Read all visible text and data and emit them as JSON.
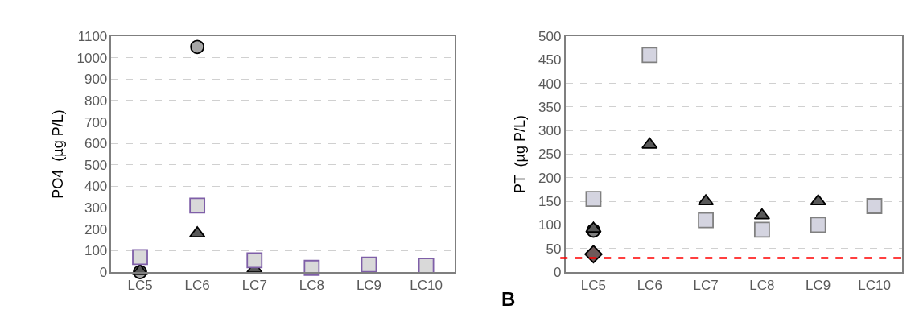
{
  "chart_data": [
    {
      "type": "scatter",
      "ylabel": "PO4  (µg P/L)",
      "categories": [
        "LC5",
        "LC6",
        "LC7",
        "LC8",
        "LC9",
        "LC10"
      ],
      "ylim": [
        0,
        1100
      ],
      "yticks": [
        0,
        100,
        200,
        300,
        400,
        500,
        600,
        700,
        800,
        900,
        1000,
        1100
      ],
      "grid": "y",
      "series": [
        {
          "color": "#a6a6a6",
          "marker": "circle",
          "values": [
            0,
            1050,
            null,
            null,
            null,
            null
          ]
        },
        {
          "color": "#595959",
          "marker": "triangle",
          "values": [
            5,
            180,
            15,
            null,
            null,
            null
          ]
        },
        {
          "color": "#d9d9d9",
          "marker": "square",
          "values": [
            70,
            310,
            55,
            20,
            35,
            30
          ]
        }
      ]
    },
    {
      "type": "scatter",
      "ylabel": "PT  (µg P/L)",
      "annotations": [
        "B"
      ],
      "categories": [
        "LC5",
        "LC6",
        "LC7",
        "LC8",
        "LC9",
        "LC10"
      ],
      "ylim": [
        0,
        500
      ],
      "yticks": [
        0,
        50,
        100,
        150,
        200,
        250,
        300,
        350,
        400,
        450,
        500
      ],
      "grid": "y",
      "ref_lines": [
        {
          "axis": "y",
          "value": 30,
          "color": "#ff0000",
          "line_style": "dashed"
        }
      ],
      "series": [
        {
          "color": "#d4d4e0",
          "marker": "square",
          "values": [
            155,
            460,
            110,
            90,
            100,
            140
          ]
        },
        {
          "color": "#808080",
          "marker": "circle",
          "values": [
            88,
            null,
            null,
            null,
            null,
            null
          ]
        },
        {
          "color": "#595959",
          "marker": "triangle",
          "values": [
            92,
            270,
            150,
            120,
            150,
            null
          ]
        },
        {
          "color": "#6e5a5a",
          "marker": "diamond",
          "values": [
            38,
            null,
            null,
            null,
            null,
            null
          ]
        }
      ]
    }
  ]
}
